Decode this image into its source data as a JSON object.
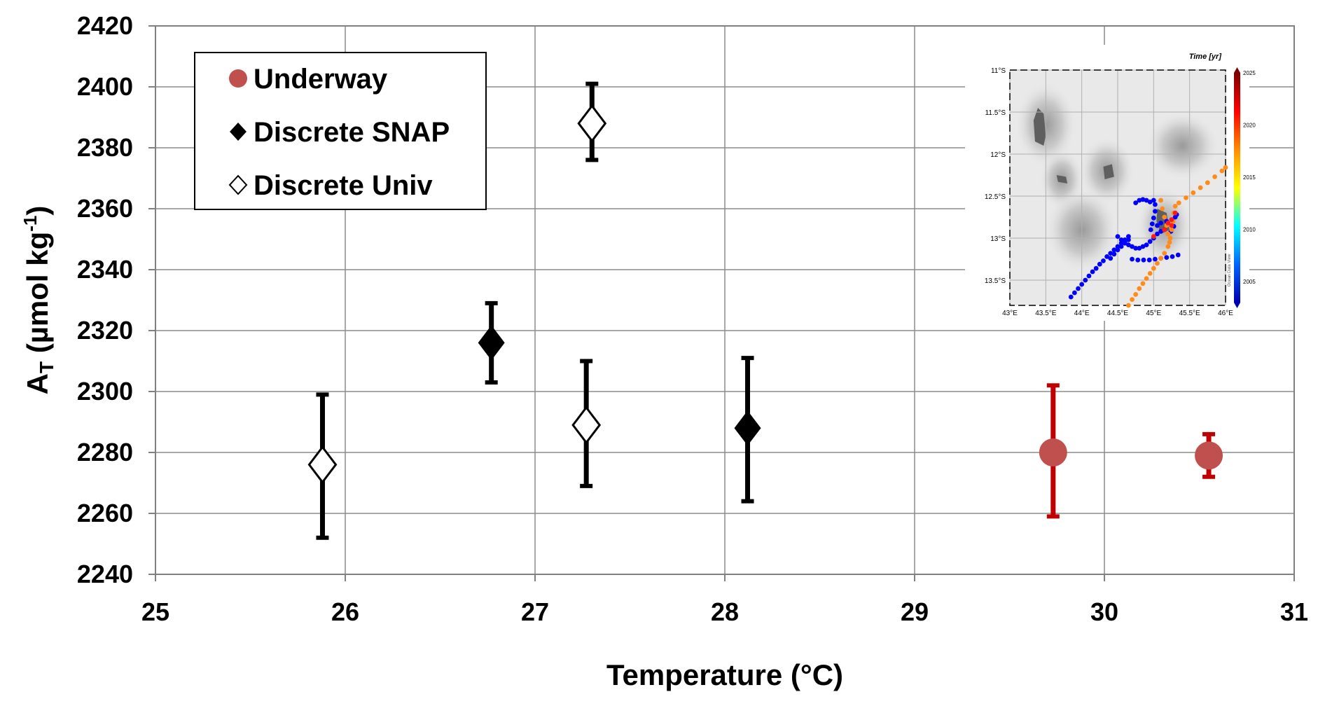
{
  "chart_data": [
    {
      "type": "scatter",
      "xlabel": "Temperature (°C)",
      "ylabel": {
        "main": "A",
        "sub": "T",
        "unit_open": " (µmol kg",
        "unit_sup": "-1",
        "unit_close": ")"
      },
      "xlim": [
        25,
        31
      ],
      "ylim": [
        2240,
        2420
      ],
      "x_ticks": [
        "25",
        "26",
        "27",
        "28",
        "29",
        "30",
        "31"
      ],
      "y_ticks": [
        "2240",
        "2260",
        "2280",
        "2300",
        "2320",
        "2340",
        "2360",
        "2380",
        "2400",
        "2420"
      ],
      "grid": true,
      "legend_position": "top-left",
      "series": [
        {
          "name": "Underway",
          "marker": "circle",
          "color": "#c0504d",
          "errorbar_color": "#c00000",
          "points": [
            {
              "x": 29.73,
              "y": 2280,
              "err_low": 2259,
              "err_high": 2302
            },
            {
              "x": 30.55,
              "y": 2279,
              "err_low": 2272,
              "err_high": 2286
            }
          ]
        },
        {
          "name": "Discrete SNAP",
          "marker": "diamond-filled",
          "color": "#000000",
          "errorbar_color": "#000000",
          "points": [
            {
              "x": 26.77,
              "y": 2316,
              "err_low": 2303,
              "err_high": 2329
            },
            {
              "x": 28.12,
              "y": 2288,
              "err_low": 2264,
              "err_high": 2311
            }
          ]
        },
        {
          "name": "Discrete Univ",
          "marker": "diamond-open",
          "color": "#000000",
          "errorbar_color": "#000000",
          "points": [
            {
              "x": 25.88,
              "y": 2276,
              "err_low": 2252,
              "err_high": 2299
            },
            {
              "x": 27.27,
              "y": 2289,
              "err_low": 2269,
              "err_high": 2310
            },
            {
              "x": 27.3,
              "y": 2388,
              "err_low": 2376,
              "err_high": 2401
            }
          ]
        }
      ]
    },
    {
      "type": "scatter",
      "subtype": "map",
      "colorbar_label": "Time [yr]",
      "colorbar_ticks": [
        "2025",
        "2020",
        "2015",
        "2010",
        "2005"
      ],
      "colorbar_range": [
        2003,
        2025
      ],
      "colorbar_colors": [
        "#7f0000",
        "#ff0000",
        "#ff8c00",
        "#ffff00",
        "#00ffff",
        "#0064ff",
        "#0000b0"
      ],
      "credit": "Ocean Data View",
      "xlim": [
        43,
        46
      ],
      "ylim": [
        -13.8,
        -11
      ],
      "x_ticks": [
        "43°E",
        "43.5°E",
        "44°E",
        "44.5°E",
        "45°E",
        "45.5°E",
        "46°E"
      ],
      "y_ticks": [
        "11°S",
        "11.5°S",
        "12°S",
        "12.5°S",
        "13°S",
        "13.5°S"
      ],
      "series": [
        {
          "name": "",
          "time": "2004",
          "color": "#0000ff",
          "points": [
            [
              43.85,
              -13.7
            ],
            [
              43.9,
              -13.65
            ],
            [
              43.95,
              -13.6
            ],
            [
              44.0,
              -13.55
            ],
            [
              44.05,
              -13.5
            ],
            [
              44.1,
              -13.45
            ],
            [
              44.15,
              -13.4
            ],
            [
              44.2,
              -13.36
            ],
            [
              44.25,
              -13.31
            ],
            [
              44.3,
              -13.27
            ],
            [
              44.35,
              -13.22
            ],
            [
              44.4,
              -13.18
            ],
            [
              44.45,
              -13.14
            ],
            [
              44.5,
              -13.1
            ],
            [
              44.55,
              -13.06
            ],
            [
              44.6,
              -13.02
            ],
            [
              44.65,
              -12.98
            ],
            [
              44.4,
              -13.24
            ],
            [
              44.45,
              -13.19
            ],
            [
              44.5,
              -13.14
            ],
            [
              44.55,
              -13.1
            ],
            [
              44.6,
              -13.06
            ],
            [
              44.65,
              -13.02
            ],
            [
              44.5,
              -12.98
            ],
            [
              44.55,
              -13.02
            ],
            [
              44.6,
              -13.05
            ],
            [
              44.65,
              -13.08
            ],
            [
              44.7,
              -13.1
            ],
            [
              44.75,
              -13.12
            ],
            [
              44.8,
              -13.12
            ],
            [
              44.85,
              -13.1
            ],
            [
              44.9,
              -13.08
            ],
            [
              44.95,
              -13.04
            ],
            [
              45.0,
              -13.0
            ],
            [
              45.05,
              -12.95
            ],
            [
              45.1,
              -12.92
            ],
            [
              45.15,
              -12.9
            ],
            [
              44.7,
              -13.25
            ],
            [
              44.78,
              -13.26
            ],
            [
              44.86,
              -13.26
            ],
            [
              44.94,
              -13.26
            ],
            [
              45.02,
              -13.25
            ],
            [
              45.1,
              -13.24
            ],
            [
              45.18,
              -13.23
            ],
            [
              45.26,
              -13.22
            ],
            [
              45.34,
              -13.2
            ],
            [
              44.75,
              -12.58
            ],
            [
              44.8,
              -12.55
            ],
            [
              44.85,
              -12.54
            ],
            [
              44.9,
              -12.55
            ],
            [
              44.95,
              -12.57
            ],
            [
              45.0,
              -12.55
            ],
            [
              45.02,
              -12.6
            ],
            [
              45.02,
              -12.68
            ],
            [
              45.0,
              -12.76
            ],
            [
              44.98,
              -12.83
            ],
            [
              44.96,
              -12.9
            ],
            [
              45.05,
              -12.85
            ],
            [
              45.1,
              -12.82
            ],
            [
              45.18,
              -12.8
            ],
            [
              45.25,
              -12.78
            ],
            [
              45.28,
              -12.86
            ],
            [
              45.24,
              -12.92
            ],
            [
              45.3,
              -12.75
            ],
            [
              45.32,
              -12.72
            ]
          ]
        },
        {
          "name": "",
          "time": "2017",
          "color": "#ff8c1a",
          "points": [
            [
              44.65,
              -13.8
            ],
            [
              44.7,
              -13.73
            ],
            [
              44.75,
              -13.67
            ],
            [
              44.8,
              -13.6
            ],
            [
              44.85,
              -13.54
            ],
            [
              44.9,
              -13.48
            ],
            [
              44.95,
              -13.42
            ],
            [
              45.0,
              -13.36
            ],
            [
              45.05,
              -13.3
            ],
            [
              45.1,
              -13.24
            ],
            [
              45.15,
              -13.18
            ],
            [
              45.2,
              -13.1
            ],
            [
              45.23,
              -13.0
            ],
            [
              45.25,
              -12.9
            ],
            [
              45.27,
              -12.8
            ],
            [
              45.28,
              -12.7
            ],
            [
              45.3,
              -12.62
            ],
            [
              45.35,
              -12.58
            ],
            [
              45.45,
              -12.52
            ],
            [
              45.55,
              -12.46
            ],
            [
              45.65,
              -12.4
            ],
            [
              45.75,
              -12.34
            ],
            [
              45.85,
              -12.27
            ],
            [
              45.95,
              -12.2
            ],
            [
              46.0,
              -12.16
            ],
            [
              45.1,
              -12.55
            ],
            [
              45.12,
              -12.65
            ],
            [
              45.15,
              -12.75
            ],
            [
              45.18,
              -12.85
            ],
            [
              45.2,
              -12.95
            ],
            [
              45.22,
              -13.05
            ]
          ]
        },
        {
          "name": "",
          "time": "2022",
          "color": "#ff1a1a",
          "points": [
            [
              45.0,
              -12.98
            ],
            [
              45.15,
              -12.9
            ],
            [
              45.2,
              -12.82
            ],
            [
              45.25,
              -12.85
            ],
            [
              45.3,
              -12.7
            ],
            [
              45.25,
              -12.78
            ]
          ]
        }
      ]
    }
  ]
}
